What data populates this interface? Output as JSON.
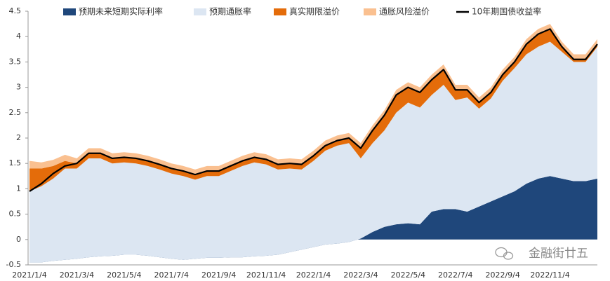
{
  "chart_data": {
    "type": "area",
    "categories": [
      "2021/1/4",
      null,
      null,
      null,
      "2021/3/4",
      null,
      null,
      null,
      "2021/5/4",
      null,
      null,
      null,
      "2021/7/4",
      null,
      null,
      null,
      "2021/9/4",
      null,
      null,
      null,
      "2021/11/4",
      null,
      null,
      null,
      "2022/1/4",
      null,
      null,
      null,
      "2022/3/4",
      null,
      null,
      null,
      "2022/5/4",
      null,
      null,
      null,
      "2022/7/4",
      null,
      null,
      null,
      "2022/9/4",
      null,
      null,
      null,
      "2022/11/4",
      null,
      null,
      null,
      null
    ],
    "ylim": [
      -0.5,
      4.5
    ],
    "yticks": [
      -0.5,
      0,
      0.5,
      1,
      1.5,
      2,
      2.5,
      3,
      3.5,
      4,
      4.5
    ],
    "stacked": true,
    "series": [
      {
        "name": "预期未来短期实际利率",
        "type": "area",
        "color": "#1f477b",
        "values": [
          -0.45,
          -0.45,
          -0.42,
          -0.4,
          -0.38,
          -0.35,
          -0.33,
          -0.32,
          -0.3,
          -0.3,
          -0.32,
          -0.35,
          -0.38,
          -0.4,
          -0.38,
          -0.36,
          -0.36,
          -0.35,
          -0.35,
          -0.33,
          -0.32,
          -0.3,
          -0.25,
          -0.2,
          -0.15,
          -0.1,
          -0.08,
          -0.05,
          0.02,
          0.15,
          0.25,
          0.3,
          0.32,
          0.3,
          0.55,
          0.6,
          0.6,
          0.55,
          0.65,
          0.75,
          0.85,
          0.95,
          1.1,
          1.2,
          1.25,
          1.2,
          1.15,
          1.15,
          1.2
        ]
      },
      {
        "name": "预期通胀率",
        "type": "area",
        "color": "#dce6f2",
        "values": [
          1.4,
          1.5,
          1.62,
          1.8,
          1.78,
          1.95,
          1.93,
          1.82,
          1.82,
          1.8,
          1.77,
          1.73,
          1.68,
          1.65,
          1.56,
          1.61,
          1.61,
          1.7,
          1.8,
          1.85,
          1.8,
          1.68,
          1.65,
          1.58,
          1.7,
          1.85,
          1.93,
          1.95,
          1.58,
          1.75,
          1.9,
          2.2,
          2.38,
          2.3,
          2.3,
          2.45,
          2.15,
          2.25,
          1.93,
          2.03,
          2.28,
          2.43,
          2.55,
          2.6,
          2.65,
          2.5,
          2.35,
          2.35,
          2.6
        ]
      },
      {
        "name": "真实期限溢价",
        "type": "area",
        "color": "#e46c0a",
        "values": [
          0.45,
          0.35,
          0.25,
          0.15,
          0.1,
          0.1,
          0.1,
          0.1,
          0.1,
          0.1,
          0.1,
          0.1,
          0.1,
          0.1,
          0.1,
          0.1,
          0.1,
          0.1,
          0.1,
          0.1,
          0.1,
          0.1,
          0.1,
          0.1,
          0.1,
          0.1,
          0.1,
          0.1,
          0.2,
          0.25,
          0.3,
          0.35,
          0.3,
          0.3,
          0.3,
          0.3,
          0.2,
          0.15,
          0.12,
          0.12,
          0.12,
          0.12,
          0.2,
          0.25,
          0.25,
          0.1,
          0.05,
          0.05,
          0.05
        ]
      },
      {
        "name": "通胀风险溢价",
        "type": "area",
        "color": "#fac090",
        "values": [
          0.15,
          0.12,
          0.12,
          0.12,
          0.1,
          0.1,
          0.1,
          0.1,
          0.1,
          0.1,
          0.1,
          0.1,
          0.1,
          0.1,
          0.1,
          0.1,
          0.1,
          0.1,
          0.1,
          0.1,
          0.1,
          0.1,
          0.1,
          0.1,
          0.1,
          0.1,
          0.1,
          0.1,
          0.1,
          0.1,
          0.1,
          0.1,
          0.1,
          0.1,
          0.1,
          0.1,
          0.1,
          0.1,
          0.1,
          0.1,
          0.1,
          0.1,
          0.1,
          0.1,
          0.1,
          0.1,
          0.1,
          0.1,
          0.1
        ]
      },
      {
        "name": "10年期国债收益率",
        "type": "line",
        "color": "#000000",
        "values": [
          0.95,
          1.1,
          1.3,
          1.45,
          1.5,
          1.7,
          1.7,
          1.6,
          1.62,
          1.6,
          1.55,
          1.48,
          1.4,
          1.35,
          1.28,
          1.35,
          1.35,
          1.45,
          1.55,
          1.62,
          1.58,
          1.48,
          1.5,
          1.48,
          1.65,
          1.85,
          1.95,
          2.0,
          1.8,
          2.15,
          2.45,
          2.85,
          3.0,
          2.9,
          3.15,
          3.35,
          2.95,
          2.95,
          2.7,
          2.9,
          3.25,
          3.5,
          3.85,
          4.05,
          4.15,
          3.8,
          3.55,
          3.55,
          3.85
        ]
      }
    ]
  },
  "watermark": "金融街廿五"
}
